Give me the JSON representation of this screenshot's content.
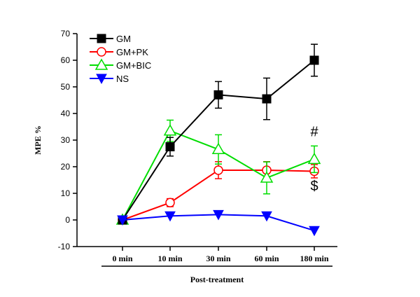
{
  "chart_data": {
    "type": "line",
    "categories": [
      "0 min",
      "10 min",
      "30 min",
      "60 min",
      "180 min"
    ],
    "xlabel": "Post-treatment",
    "ylabel": "MPE %",
    "ylim": [
      -10,
      70
    ],
    "yticks": [
      -10,
      0,
      10,
      20,
      30,
      40,
      50,
      60,
      70
    ],
    "grid": false,
    "legend_position": "top-left",
    "series": [
      {
        "name": "GM",
        "color": "#000000",
        "marker": "square-filled",
        "values": [
          0,
          27.5,
          47,
          45.5,
          60
        ],
        "errors": [
          0,
          3.5,
          5,
          7.8,
          6
        ]
      },
      {
        "name": "GM+PK",
        "color": "#ff0000",
        "marker": "circle-open",
        "values": [
          0,
          6.5,
          18.7,
          18.7,
          18.3
        ],
        "errors": [
          0,
          1.5,
          3.2,
          3.2,
          2.5
        ]
      },
      {
        "name": "GM+BIC",
        "color": "#00dd00",
        "marker": "triangle-up-open",
        "values": [
          0,
          33.5,
          26.5,
          15.8,
          22.8
        ],
        "errors": [
          0,
          4,
          5.5,
          6,
          5
        ]
      },
      {
        "name": "NS",
        "color": "#0000ff",
        "marker": "triangle-down-filled",
        "values": [
          0,
          1.5,
          2,
          1.5,
          -4
        ],
        "errors": [
          0,
          0,
          0,
          0,
          0
        ]
      }
    ],
    "annotations": [
      {
        "text": "#",
        "category": "180 min",
        "y": 31.5
      },
      {
        "text": "$",
        "category": "180 min",
        "y": 11
      }
    ]
  }
}
